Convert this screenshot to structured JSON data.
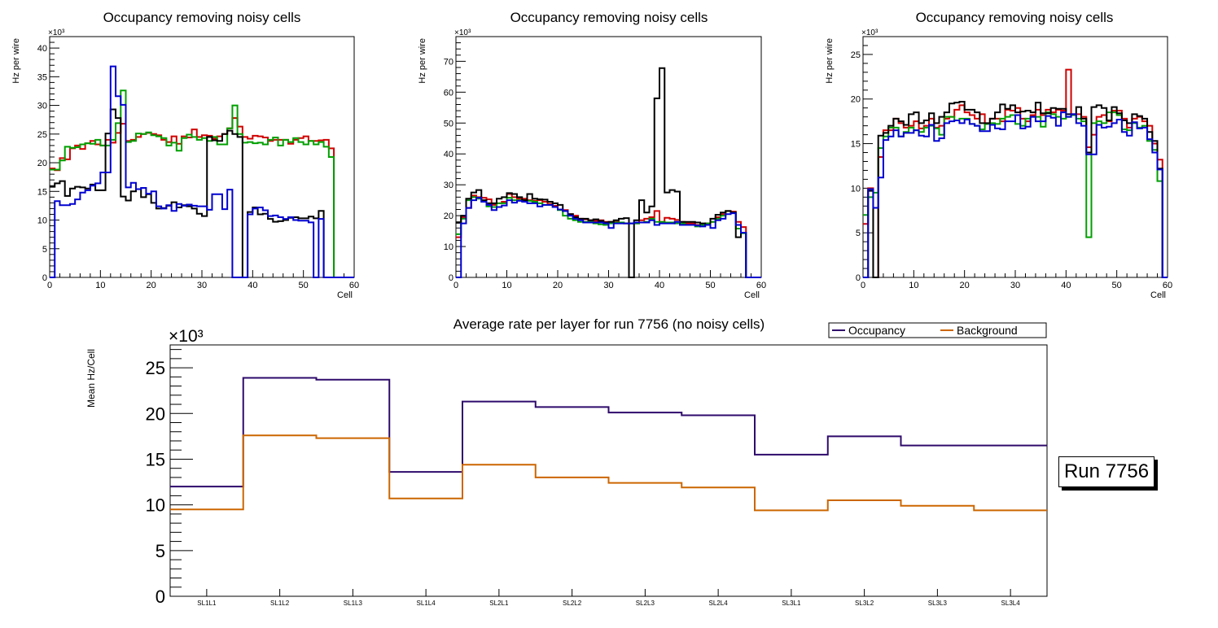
{
  "chart_data": [
    {
      "type": "line",
      "style": "step-histogram",
      "title": "Occupancy removing noisy cells",
      "xlabel": "Cell",
      "ylabel": "Hz per wire",
      "y_multiplier": "×10³",
      "xlim": [
        0,
        60
      ],
      "ylim": [
        0,
        42
      ],
      "x_ticks": [
        0,
        10,
        20,
        30,
        40,
        50,
        60
      ],
      "y_ticks": [
        0,
        5,
        10,
        15,
        20,
        25,
        30,
        35,
        40
      ],
      "grid": false,
      "series": [
        {
          "name": "red",
          "color": "#d00000",
          "values": [
            19.0,
            18.7,
            20.8,
            20.6,
            22.5,
            23.0,
            22.4,
            23.4,
            23.8,
            23.2,
            23.0,
            24.0,
            23.5,
            25.2,
            26.8,
            23.8,
            24.0,
            24.5,
            25.0,
            25.2,
            25.0,
            24.8,
            24.0,
            23.6,
            24.6,
            23.3,
            24.6,
            24.4,
            25.8,
            24.5,
            24.8,
            24.7,
            24.2,
            24.6,
            25.0,
            26.0,
            27.8,
            26.3,
            24.5,
            24.2,
            24.7,
            24.6,
            24.4,
            23.8,
            24.0,
            24.0,
            24.0,
            23.3,
            24.0,
            24.3,
            24.6,
            23.8,
            23.8,
            23.9,
            24.0,
            22.5,
            0,
            0,
            0,
            0
          ]
        },
        {
          "name": "green",
          "color": "#00a000",
          "values": [
            18.8,
            18.8,
            20.4,
            22.8,
            22.6,
            22.7,
            23.2,
            23.4,
            23.3,
            24.0,
            23.0,
            23.0,
            24.0,
            26.9,
            32.6,
            23.6,
            23.8,
            25.1,
            25.0,
            25.3,
            24.8,
            24.6,
            24.3,
            23.0,
            23.5,
            22.1,
            24.3,
            24.9,
            24.5,
            24.0,
            24.3,
            23.8,
            24.5,
            23.2,
            23.2,
            26.0,
            30.0,
            25.0,
            23.5,
            23.6,
            23.4,
            23.5,
            23.2,
            24.0,
            24.4,
            23.0,
            24.0,
            23.6,
            24.3,
            23.6,
            23.2,
            23.8,
            23.2,
            23.6,
            22.8,
            21.0,
            0,
            0,
            0,
            0
          ]
        },
        {
          "name": "black",
          "color": "#000000",
          "values": [
            15.8,
            16.4,
            16.8,
            14.2,
            15.5,
            15.8,
            15.7,
            15.5,
            16.2,
            15.2,
            15.2,
            25.1,
            29.3,
            27.8,
            14.1,
            13.4,
            15.0,
            15.4,
            14.0,
            14.5,
            13.0,
            12.0,
            12.1,
            12.5,
            13.1,
            12.2,
            12.6,
            12.4,
            12.0,
            11.1,
            10.7,
            24.5,
            23.9,
            23.8,
            25.0,
            25.6,
            25.0,
            24.5,
            0,
            11.4,
            12.2,
            11.0,
            11.1,
            10.2,
            9.7,
            9.8,
            10.0,
            10.4,
            10.5,
            10.3,
            10.3,
            10.6,
            10.3,
            11.6,
            0,
            0,
            0,
            0,
            0,
            0
          ]
        },
        {
          "name": "blue",
          "color": "#0000d0",
          "values": [
            0,
            13.3,
            12.6,
            12.6,
            12.8,
            13.6,
            14.8,
            15.2,
            16.0,
            16.4,
            18.3,
            18.3,
            36.8,
            31.6,
            30.1,
            15.7,
            16.5,
            15.4,
            15.6,
            14.6,
            15.0,
            12.4,
            12.0,
            12.6,
            11.6,
            12.8,
            12.5,
            12.7,
            12.5,
            12.4,
            12.4,
            11.8,
            14.5,
            14.5,
            11.9,
            15.3,
            0,
            0,
            0,
            11.0,
            12.0,
            12.2,
            11.7,
            10.7,
            10.8,
            10.5,
            10.2,
            10.5,
            10.0,
            9.9,
            9.9,
            9.6,
            0,
            10.2,
            0,
            0,
            0,
            0,
            0,
            0
          ]
        }
      ]
    },
    {
      "type": "line",
      "style": "step-histogram",
      "title": "Occupancy removing noisy cells",
      "xlabel": "Cell",
      "ylabel": "Hz per wire",
      "y_multiplier": "×10³",
      "xlim": [
        0,
        60
      ],
      "ylim": [
        0,
        78
      ],
      "x_ticks": [
        0,
        10,
        20,
        30,
        40,
        50,
        60
      ],
      "y_ticks": [
        0,
        10,
        20,
        30,
        40,
        50,
        60,
        70
      ],
      "grid": false,
      "series": [
        {
          "name": "red",
          "color": "#d00000",
          "values": [
            13.0,
            19.5,
            22.5,
            26.5,
            26.0,
            25.8,
            25.3,
            23.5,
            24.0,
            24.5,
            27.0,
            26.0,
            25.5,
            25.5,
            25.0,
            24.8,
            25.0,
            24.5,
            23.8,
            23.2,
            22.0,
            21.8,
            20.5,
            20.0,
            19.0,
            18.8,
            18.5,
            18.3,
            18.5,
            18.0,
            18.0,
            18.0,
            17.8,
            17.5,
            17.5,
            17.5,
            18.5,
            19.0,
            19.5,
            21.5,
            18.0,
            19.3,
            19.0,
            18.6,
            18.0,
            17.5,
            17.5,
            17.0,
            17.0,
            17.5,
            18.0,
            19.5,
            20.5,
            21.5,
            21.3,
            18.0,
            16.3,
            0,
            0,
            0
          ]
        },
        {
          "name": "green",
          "color": "#00a000",
          "values": [
            14.0,
            19.0,
            25.0,
            26.0,
            25.5,
            24.5,
            23.0,
            22.8,
            24.0,
            24.0,
            25.8,
            25.0,
            25.0,
            25.0,
            24.8,
            24.5,
            24.0,
            23.5,
            23.5,
            22.8,
            21.8,
            20.0,
            19.0,
            18.5,
            18.0,
            18.0,
            18.0,
            17.5,
            17.2,
            17.0,
            17.5,
            17.8,
            17.8,
            17.5,
            17.5,
            17.5,
            17.8,
            18.0,
            19.0,
            18.0,
            18.0,
            17.8,
            17.8,
            17.5,
            17.5,
            17.0,
            17.0,
            16.5,
            17.0,
            17.5,
            18.0,
            19.0,
            20.0,
            21.5,
            21.0,
            15.8,
            14.3,
            0,
            0,
            0
          ]
        },
        {
          "name": "black",
          "color": "#000000",
          "values": [
            17.7,
            20.0,
            25.5,
            27.5,
            28.3,
            25.0,
            24.0,
            24.0,
            25.5,
            26.0,
            27.3,
            27.0,
            26.0,
            25.0,
            27.0,
            25.5,
            25.3,
            25.2,
            24.5,
            24.0,
            23.5,
            21.5,
            20.5,
            19.5,
            19.0,
            19.0,
            18.5,
            18.8,
            18.3,
            17.8,
            18.0,
            18.5,
            19.0,
            19.2,
            0,
            18.5,
            25.0,
            21.0,
            23.0,
            58.0,
            67.8,
            27.5,
            28.3,
            27.8,
            18.0,
            18.0,
            18.0,
            17.8,
            17.5,
            17.0,
            19.0,
            20.3,
            21.0,
            21.5,
            21.0,
            13.0,
            14.5,
            0,
            0,
            0
          ]
        },
        {
          "name": "blue",
          "color": "#0000d0",
          "values": [
            0,
            17.5,
            22.5,
            25.0,
            25.8,
            24.5,
            23.5,
            21.8,
            22.8,
            23.3,
            25.0,
            24.2,
            24.8,
            24.5,
            24.0,
            24.0,
            23.0,
            23.5,
            23.5,
            22.8,
            22.0,
            21.5,
            20.0,
            19.0,
            18.5,
            17.8,
            17.8,
            17.8,
            17.8,
            17.5,
            16.0,
            17.5,
            17.5,
            17.5,
            17.5,
            17.8,
            17.8,
            17.8,
            18.5,
            17.0,
            17.5,
            17.5,
            17.5,
            18.0,
            17.0,
            17.0,
            17.0,
            16.8,
            16.5,
            17.0,
            16.0,
            18.5,
            19.0,
            20.5,
            20.8,
            17.0,
            14.5,
            0,
            0,
            0
          ]
        }
      ]
    },
    {
      "type": "line",
      "style": "step-histogram",
      "title": "Occupancy removing noisy cells",
      "xlabel": "Cell",
      "ylabel": "Hz per wire",
      "y_multiplier": "×10³",
      "xlim": [
        0,
        60
      ],
      "ylim": [
        0,
        27
      ],
      "x_ticks": [
        0,
        10,
        20,
        30,
        40,
        50,
        60
      ],
      "y_ticks": [
        0,
        5,
        10,
        15,
        20,
        25
      ],
      "grid": false,
      "series": [
        {
          "name": "red",
          "color": "#d00000",
          "values": [
            6.0,
            10.0,
            0,
            13.5,
            16.5,
            16.5,
            17.8,
            17.3,
            16.8,
            17.0,
            17.5,
            16.7,
            17.0,
            17.8,
            16.8,
            17.0,
            17.8,
            18.0,
            18.8,
            19.3,
            18.5,
            18.2,
            17.8,
            18.3,
            17.2,
            17.8,
            17.8,
            17.5,
            18.8,
            18.7,
            19.0,
            17.8,
            17.5,
            18.2,
            18.8,
            18.2,
            18.8,
            18.5,
            18.8,
            18.7,
            23.3,
            18.2,
            18.3,
            18.0,
            14.6,
            16.0,
            18.0,
            18.2,
            17.5,
            18.7,
            18.7,
            17.8,
            16.8,
            17.8,
            18.0,
            17.5,
            17.0,
            15.0,
            13.2,
            0
          ]
        },
        {
          "name": "green",
          "color": "#00a000",
          "values": [
            7.0,
            9.0,
            9.5,
            14.5,
            15.8,
            16.8,
            16.8,
            15.8,
            16.3,
            16.8,
            16.5,
            16.3,
            16.8,
            17.0,
            16.7,
            16.0,
            18.0,
            18.0,
            17.6,
            17.8,
            17.8,
            17.2,
            17.0,
            16.6,
            17.2,
            17.3,
            17.2,
            17.8,
            18.0,
            18.2,
            17.2,
            17.0,
            17.8,
            18.0,
            18.0,
            16.9,
            18.5,
            18.3,
            18.0,
            17.8,
            18.0,
            18.2,
            17.8,
            17.5,
            4.5,
            17.3,
            17.5,
            17.3,
            18.5,
            18.5,
            18.2,
            16.6,
            16.5,
            17.3,
            16.8,
            17.0,
            15.3,
            14.3,
            10.8,
            0
          ]
        },
        {
          "name": "black",
          "color": "#000000",
          "values": [
            0,
            9.7,
            0,
            15.9,
            16.2,
            17.0,
            17.8,
            17.5,
            17.1,
            18.3,
            18.5,
            17.3,
            17.6,
            18.4,
            17.3,
            18.0,
            18.5,
            19.5,
            19.6,
            19.7,
            18.8,
            18.8,
            18.5,
            17.3,
            17.3,
            17.8,
            18.5,
            19.4,
            18.9,
            19.3,
            18.5,
            18.6,
            18.7,
            18.5,
            19.6,
            18.4,
            18.4,
            19.0,
            18.9,
            18.9,
            18.3,
            18.3,
            19.1,
            17.8,
            14.0,
            19.1,
            19.3,
            19.0,
            17.6,
            19.1,
            18.4,
            17.6,
            17.3,
            18.3,
            18.1,
            17.8,
            16.3,
            15.3,
            12.2,
            0
          ]
        },
        {
          "name": "blue",
          "color": "#0000d0",
          "values": [
            0,
            9.9,
            7.8,
            11.2,
            15.4,
            15.8,
            16.5,
            15.8,
            16.2,
            16.2,
            16.5,
            15.9,
            15.8,
            17.1,
            15.3,
            15.6,
            17.3,
            17.5,
            17.6,
            17.3,
            17.7,
            17.2,
            17.0,
            16.4,
            16.4,
            17.1,
            16.7,
            16.6,
            17.5,
            17.5,
            18.2,
            16.7,
            16.9,
            18.0,
            17.5,
            17.5,
            18.1,
            17.9,
            17.0,
            18.5,
            18.0,
            18.3,
            17.3,
            17.0,
            13.8,
            13.8,
            17.1,
            16.8,
            16.9,
            17.3,
            17.7,
            16.3,
            15.9,
            17.4,
            16.7,
            16.8,
            15.5,
            14.0,
            12.1,
            0
          ]
        }
      ]
    },
    {
      "type": "line",
      "style": "step-histogram",
      "title": "Average rate per layer for run 7756 (no noisy cells)",
      "xlabel": "",
      "ylabel": "Mean Hz/Cell",
      "y_multiplier": "×10³",
      "ylim": [
        0,
        27.5
      ],
      "y_ticks": [
        0,
        5,
        10,
        15,
        20,
        25
      ],
      "grid": false,
      "legend": "top-right",
      "categories": [
        "SL1L1",
        "SL1L2",
        "SL1L3",
        "SL1L4",
        "SL2L1",
        "SL2L2",
        "SL2L3",
        "SL2L4",
        "SL3L1",
        "SL3L2",
        "SL3L3",
        "SL3L4"
      ],
      "series": [
        {
          "name": "Occupancy",
          "color": "#2e0a6b",
          "values": [
            12.0,
            23.9,
            23.7,
            13.6,
            21.3,
            20.7,
            20.1,
            19.8,
            15.5,
            17.5,
            16.5,
            16.5
          ]
        },
        {
          "name": "Background",
          "color": "#cc6600",
          "values": [
            9.5,
            17.6,
            17.3,
            10.7,
            14.4,
            13.0,
            12.4,
            11.9,
            9.4,
            10.5,
            9.9,
            9.4
          ]
        }
      ]
    }
  ],
  "annotation": {
    "run_label": "Run 7756"
  }
}
